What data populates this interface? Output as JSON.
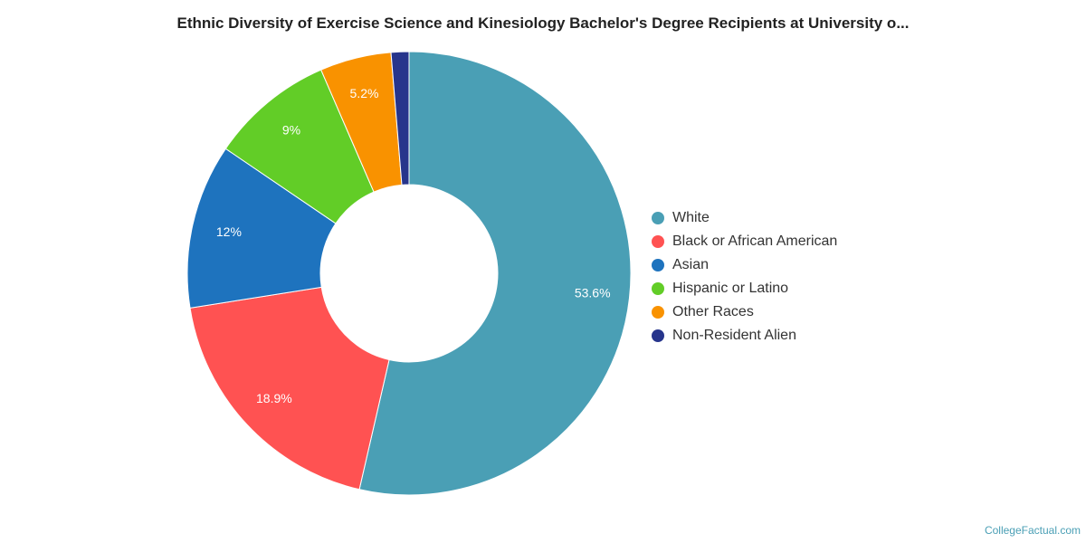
{
  "chart_data": {
    "type": "pie",
    "variant": "donut",
    "title": "Ethnic Diversity of Exercise Science and Kinesiology Bachelor's Degree Recipients at University o...",
    "categories": [
      "White",
      "Black or African American",
      "Asian",
      "Hispanic or Latino",
      "Other Races",
      "Non-Resident Alien"
    ],
    "values": [
      53.6,
      18.9,
      12,
      9,
      5.2,
      1.3
    ],
    "labels": [
      "53.6%",
      "18.9%",
      "12%",
      "9%",
      "5.2%",
      ""
    ],
    "colors": [
      "#4a9fb5",
      "#ff5252",
      "#1e73be",
      "#62cd27",
      "#f99200",
      "#27358c"
    ],
    "legend_position": "right"
  },
  "credit": "CollegeFactual.com"
}
